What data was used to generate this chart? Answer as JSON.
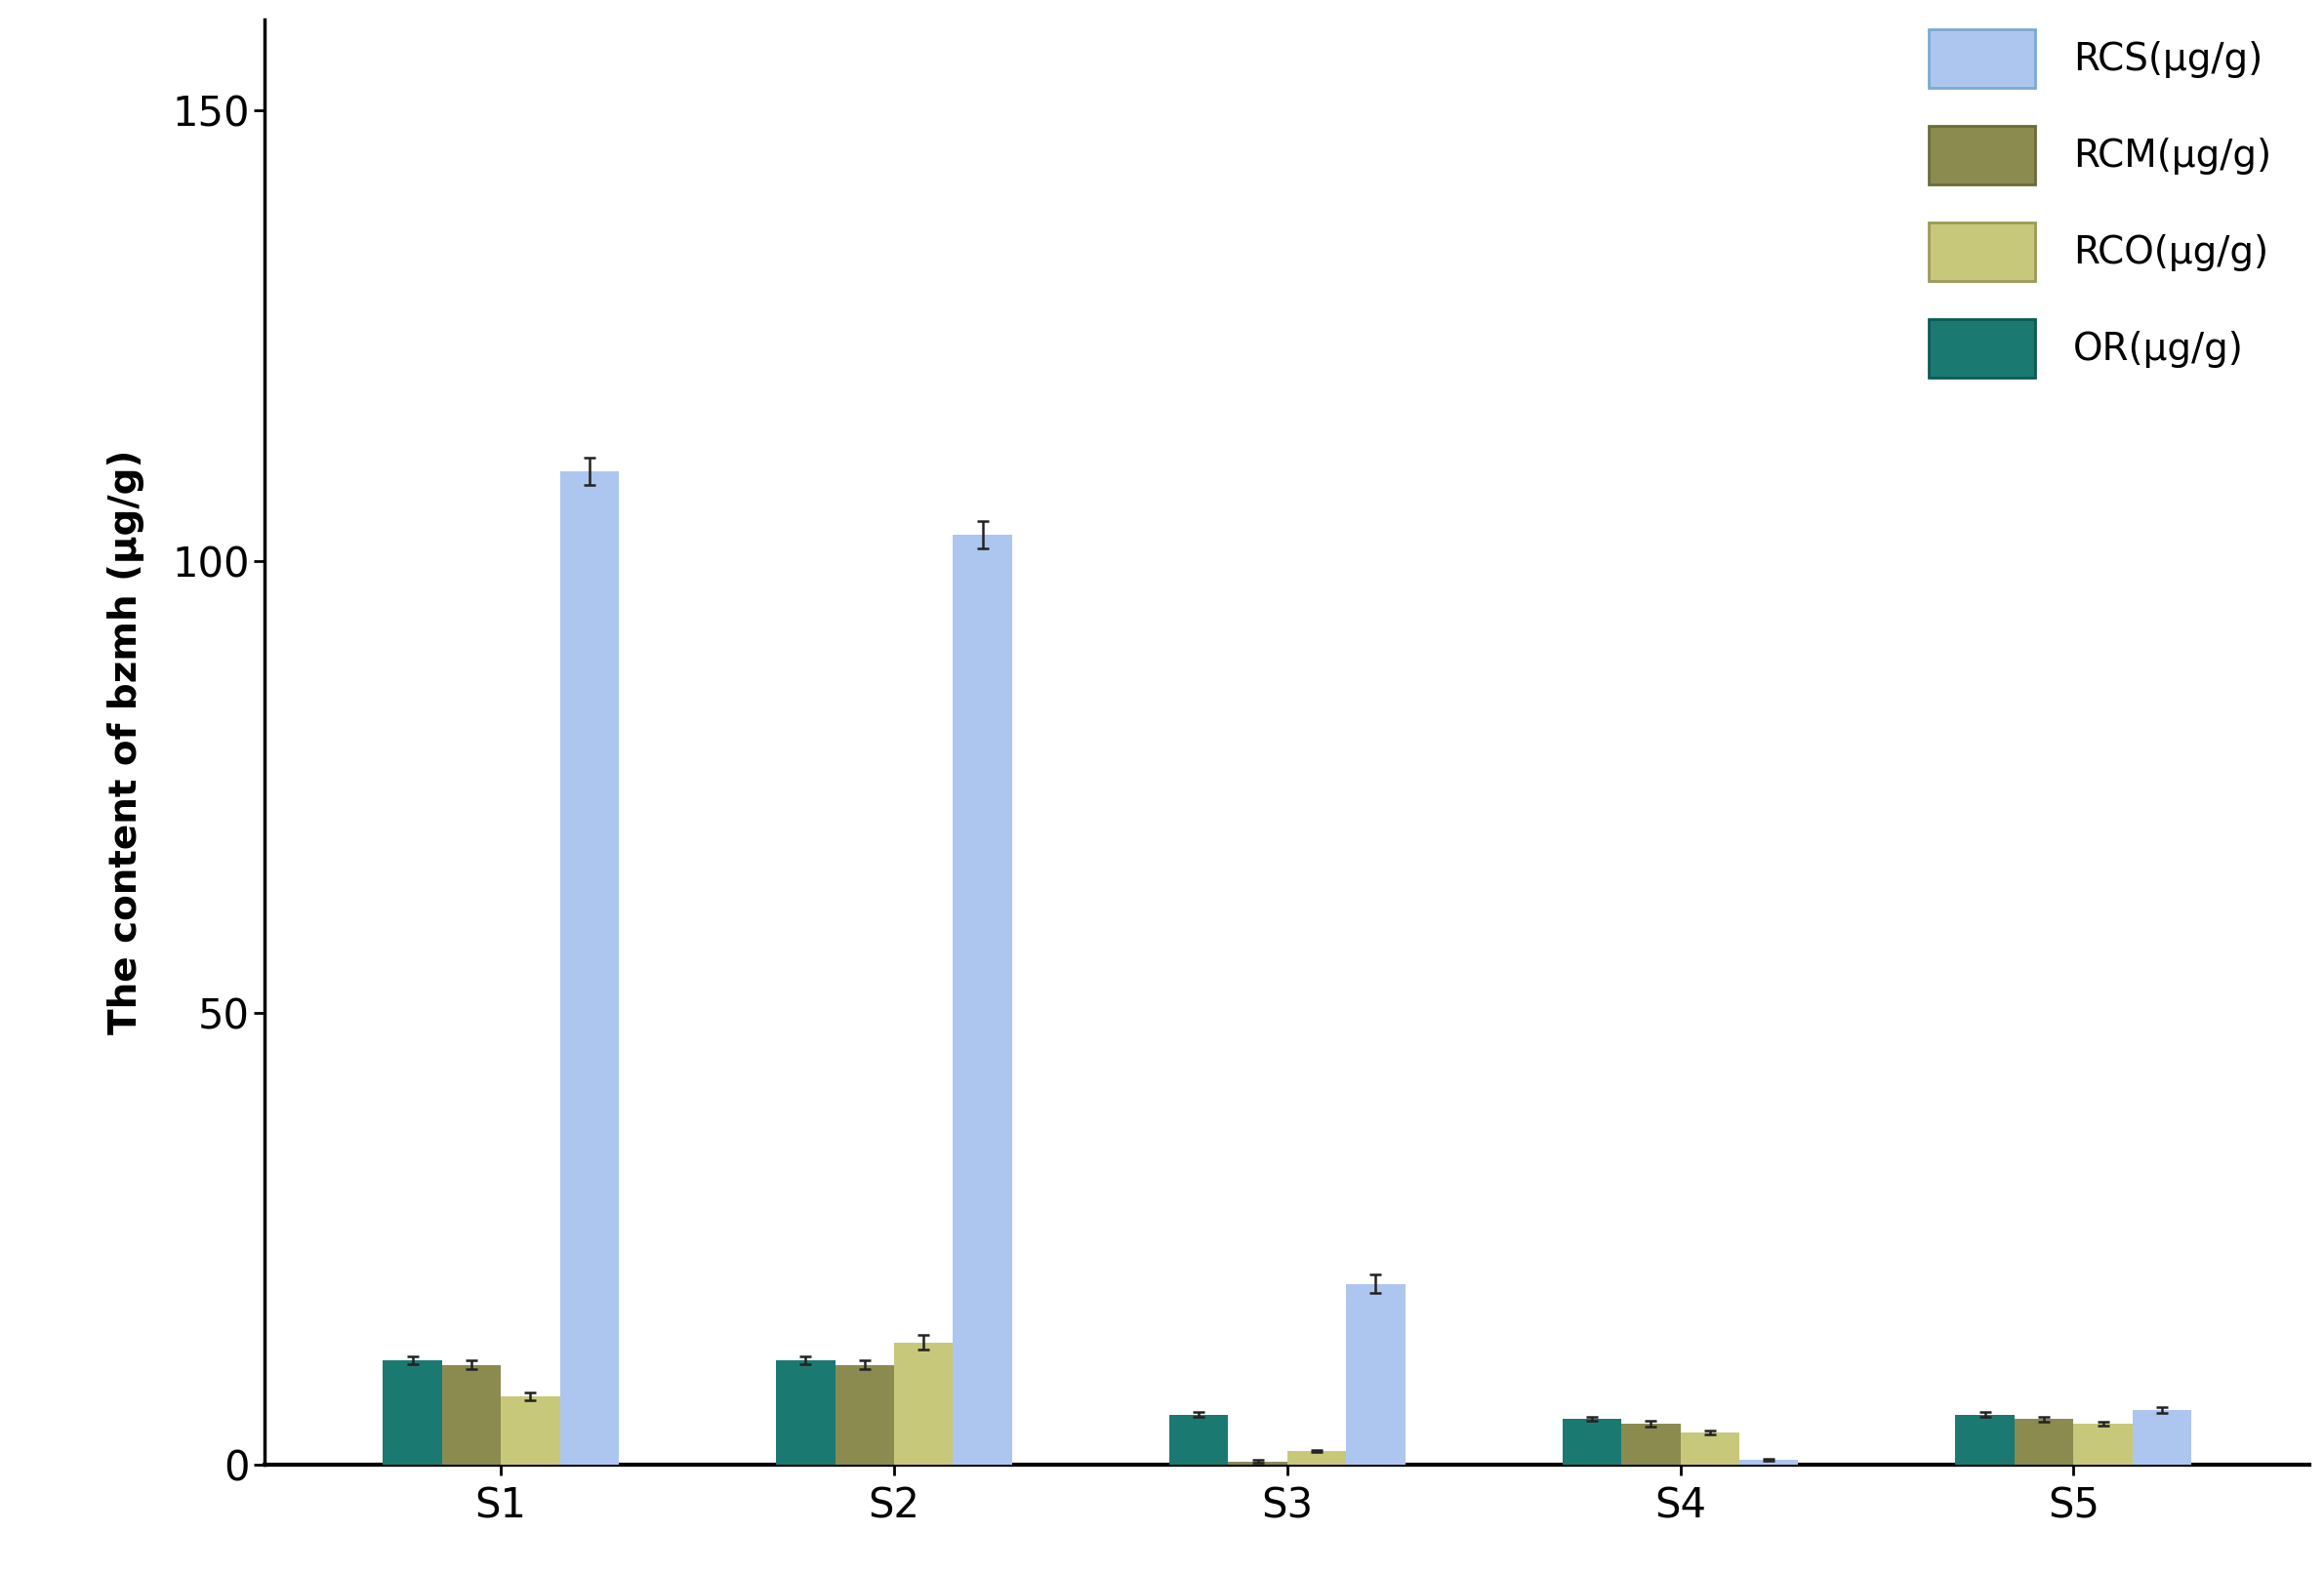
{
  "categories": [
    "S1",
    "S2",
    "S3",
    "S4",
    "S5"
  ],
  "series_order": [
    "OR",
    "RCM",
    "RCO",
    "RCS"
  ],
  "series": {
    "RCS": [
      110.0,
      103.0,
      20.0,
      0.5,
      6.0
    ],
    "RCM": [
      11.0,
      11.0,
      0.3,
      4.5,
      5.0
    ],
    "RCO": [
      7.5,
      13.5,
      1.5,
      3.5,
      4.5
    ],
    "OR": [
      11.5,
      11.5,
      5.5,
      5.0,
      5.5
    ]
  },
  "errors": {
    "RCS": [
      1.5,
      1.5,
      1.0,
      0.1,
      0.3
    ],
    "RCM": [
      0.5,
      0.5,
      0.15,
      0.3,
      0.3
    ],
    "RCO": [
      0.4,
      0.8,
      0.1,
      0.2,
      0.2
    ],
    "OR": [
      0.4,
      0.4,
      0.3,
      0.2,
      0.3
    ]
  },
  "colors": {
    "RCS": "#adc6ef",
    "RCM": "#8b8b50",
    "RCO": "#c8c87a",
    "OR": "#1a7a72"
  },
  "legend_labels": [
    "RCS(μg/g)",
    "RCM(μg/g)",
    "RCO(μg/g)",
    "OR(μg/g)"
  ],
  "legend_colors": [
    "RCS",
    "RCM",
    "RCO",
    "OR"
  ],
  "ylabel": "The content of bzmh (μg/g)",
  "ylim": [
    0,
    160
  ],
  "yticks": [
    0,
    50,
    100,
    150
  ],
  "bar_width": 0.15,
  "group_width": 0.85,
  "background_color": "#ffffff"
}
